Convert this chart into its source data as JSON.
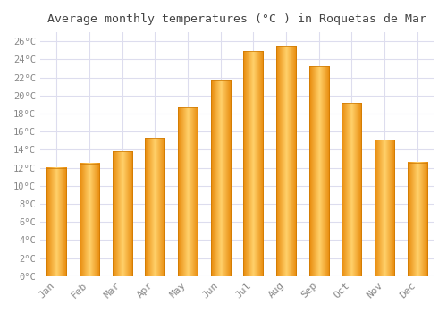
{
  "months": [
    "Jan",
    "Feb",
    "Mar",
    "Apr",
    "May",
    "Jun",
    "Jul",
    "Aug",
    "Sep",
    "Oct",
    "Nov",
    "Dec"
  ],
  "temperatures": [
    12.0,
    12.5,
    13.8,
    15.3,
    18.7,
    21.7,
    24.9,
    25.5,
    23.2,
    19.2,
    15.1,
    12.6
  ],
  "bar_color_left": "#F5A623",
  "bar_color_center": "#FFD06A",
  "bar_color_right": "#E8890A",
  "title": "Average monthly temperatures (°C ) in Roquetas de Mar",
  "title_fontsize": 9.5,
  "ylim": [
    0,
    27
  ],
  "ytick_step": 2,
  "ytick_max": 26,
  "background_color": "#ffffff",
  "grid_color": "#ddddee",
  "tick_label_color": "#888888",
  "font_family": "monospace",
  "bar_width": 0.6
}
